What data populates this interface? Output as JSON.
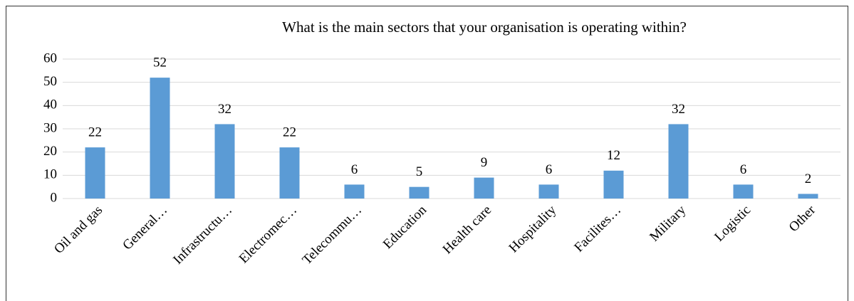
{
  "chart_data": {
    "type": "bar",
    "title": "What is the main sectors that your organisation is operating within?",
    "categories": [
      "Oil and gas",
      "General…",
      "Infrastructu…",
      "Electromec…",
      "Telecommu…",
      "Education",
      "Health care",
      "Hospitality",
      "Facilites…",
      "Military",
      "Logistic",
      "Other"
    ],
    "values": [
      22,
      52,
      32,
      22,
      6,
      5,
      9,
      6,
      12,
      32,
      6,
      2
    ],
    "color": "#5b9bd5",
    "ylim": [
      0,
      60
    ],
    "yticks": [
      0,
      10,
      20,
      30,
      40,
      50,
      60
    ],
    "grid": true
  }
}
